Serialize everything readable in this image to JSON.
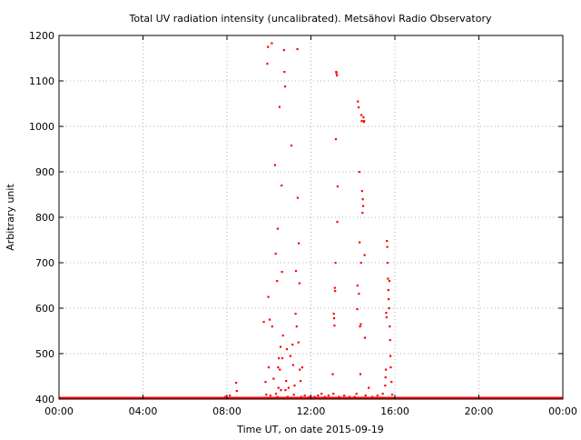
{
  "chart_data": {
    "type": "scatter",
    "title": "Total UV radiation intensity (uncalibrated). Metsähovi Radio Observatory",
    "xlabel": "Time UT, on date 2015-09-19",
    "ylabel": "Arbitrary unit",
    "xlim": [
      "00:00",
      "24:00"
    ],
    "ylim": [
      400,
      1200
    ],
    "x_ticks": [
      "00:00",
      "04:00",
      "08:00",
      "12:00",
      "16:00",
      "20:00",
      "00:00"
    ],
    "y_ticks": [
      "400",
      "500",
      "600",
      "700",
      "800",
      "900",
      "1000",
      "1100",
      "1200"
    ],
    "grid": true,
    "baseline": {
      "value": 400,
      "from": "00:00",
      "to": "24:00"
    },
    "series": [
      {
        "color": "#ff0000",
        "points": [
          {
            "x": "07:55",
            "y": 405
          },
          {
            "x": "08:08",
            "y": 408
          },
          {
            "x": "08:26",
            "y": 436
          },
          {
            "x": "08:28",
            "y": 418
          },
          {
            "x": "09:45",
            "y": 570
          },
          {
            "x": "09:50",
            "y": 438
          },
          {
            "x": "09:52",
            "y": 410
          },
          {
            "x": "09:55",
            "y": 1138
          },
          {
            "x": "09:57",
            "y": 1175
          },
          {
            "x": "09:58",
            "y": 625
          },
          {
            "x": "09:59",
            "y": 470
          },
          {
            "x": "10:02",
            "y": 575
          },
          {
            "x": "10:04",
            "y": 408
          },
          {
            "x": "10:08",
            "y": 1183
          },
          {
            "x": "10:09",
            "y": 560
          },
          {
            "x": "10:13",
            "y": 445
          },
          {
            "x": "10:17",
            "y": 915
          },
          {
            "x": "10:19",
            "y": 720
          },
          {
            "x": "10:20",
            "y": 412
          },
          {
            "x": "10:23",
            "y": 660
          },
          {
            "x": "10:24",
            "y": 405
          },
          {
            "x": "10:25",
            "y": 775
          },
          {
            "x": "10:26",
            "y": 470
          },
          {
            "x": "10:27",
            "y": 425
          },
          {
            "x": "10:28",
            "y": 490
          },
          {
            "x": "10:30",
            "y": 1043
          },
          {
            "x": "10:31",
            "y": 465
          },
          {
            "x": "10:33",
            "y": 515
          },
          {
            "x": "10:34",
            "y": 420
          },
          {
            "x": "10:36",
            "y": 870
          },
          {
            "x": "10:37",
            "y": 680
          },
          {
            "x": "10:38",
            "y": 490
          },
          {
            "x": "10:40",
            "y": 540
          },
          {
            "x": "10:43",
            "y": 1168
          },
          {
            "x": "10:44",
            "y": 1120
          },
          {
            "x": "10:46",
            "y": 1088
          },
          {
            "x": "10:47",
            "y": 420
          },
          {
            "x": "10:49",
            "y": 440
          },
          {
            "x": "10:51",
            "y": 510
          },
          {
            "x": "10:53",
            "y": 405
          },
          {
            "x": "10:56",
            "y": 425
          },
          {
            "x": "11:01",
            "y": 495
          },
          {
            "x": "11:04",
            "y": 958
          },
          {
            "x": "11:07",
            "y": 520
          },
          {
            "x": "11:09",
            "y": 475
          },
          {
            "x": "11:11",
            "y": 410
          },
          {
            "x": "11:13",
            "y": 430
          },
          {
            "x": "11:16",
            "y": 588
          },
          {
            "x": "11:17",
            "y": 682
          },
          {
            "x": "11:19",
            "y": 560
          },
          {
            "x": "11:21",
            "y": 1170
          },
          {
            "x": "11:22",
            "y": 843
          },
          {
            "x": "11:24",
            "y": 525
          },
          {
            "x": "11:25",
            "y": 743
          },
          {
            "x": "11:27",
            "y": 655
          },
          {
            "x": "11:28",
            "y": 465
          },
          {
            "x": "11:30",
            "y": 440
          },
          {
            "x": "11:32",
            "y": 405
          },
          {
            "x": "11:35",
            "y": 470
          },
          {
            "x": "11:42",
            "y": 408
          },
          {
            "x": "11:55",
            "y": 405
          },
          {
            "x": "12:10",
            "y": 405
          },
          {
            "x": "12:20",
            "y": 408
          },
          {
            "x": "12:30",
            "y": 412
          },
          {
            "x": "12:40",
            "y": 405
          },
          {
            "x": "12:50",
            "y": 408
          },
          {
            "x": "13:02",
            "y": 455
          },
          {
            "x": "13:04",
            "y": 412
          },
          {
            "x": "13:05",
            "y": 588
          },
          {
            "x": "13:06",
            "y": 578
          },
          {
            "x": "13:07",
            "y": 562
          },
          {
            "x": "13:08",
            "y": 645
          },
          {
            "x": "13:09",
            "y": 638
          },
          {
            "x": "13:10",
            "y": 700
          },
          {
            "x": "13:11",
            "y": 972
          },
          {
            "x": "13:12",
            "y": 1120
          },
          {
            "x": "13:13",
            "y": 1117
          },
          {
            "x": "13:14",
            "y": 1112
          },
          {
            "x": "13:15",
            "y": 790
          },
          {
            "x": "13:16",
            "y": 868
          },
          {
            "x": "13:20",
            "y": 405
          },
          {
            "x": "13:35",
            "y": 408
          },
          {
            "x": "13:50",
            "y": 405
          },
          {
            "x": "14:05",
            "y": 405
          },
          {
            "x": "14:10",
            "y": 412
          },
          {
            "x": "14:12",
            "y": 598
          },
          {
            "x": "14:13",
            "y": 650
          },
          {
            "x": "14:14",
            "y": 1055
          },
          {
            "x": "14:16",
            "y": 1042
          },
          {
            "x": "14:17",
            "y": 632
          },
          {
            "x": "14:18",
            "y": 900
          },
          {
            "x": "14:19",
            "y": 745
          },
          {
            "x": "14:20",
            "y": 560
          },
          {
            "x": "14:21",
            "y": 455
          },
          {
            "x": "14:22",
            "y": 565
          },
          {
            "x": "14:23",
            "y": 700
          },
          {
            "x": "14:24",
            "y": 1025
          },
          {
            "x": "14:25",
            "y": 1012
          },
          {
            "x": "14:26",
            "y": 858
          },
          {
            "x": "14:27",
            "y": 810
          },
          {
            "x": "14:28",
            "y": 840
          },
          {
            "x": "14:29",
            "y": 825
          },
          {
            "x": "14:30",
            "y": 1020
          },
          {
            "x": "14:31",
            "y": 1010
          },
          {
            "x": "14:32",
            "y": 1012
          },
          {
            "x": "14:33",
            "y": 717
          },
          {
            "x": "14:34",
            "y": 535
          },
          {
            "x": "14:36",
            "y": 408
          },
          {
            "x": "14:45",
            "y": 425
          },
          {
            "x": "14:55",
            "y": 405
          },
          {
            "x": "15:10",
            "y": 408
          },
          {
            "x": "15:25",
            "y": 412
          },
          {
            "x": "15:32",
            "y": 430
          },
          {
            "x": "15:33",
            "y": 448
          },
          {
            "x": "15:34",
            "y": 465
          },
          {
            "x": "15:35",
            "y": 590
          },
          {
            "x": "15:36",
            "y": 580
          },
          {
            "x": "15:37",
            "y": 748
          },
          {
            "x": "15:38",
            "y": 735
          },
          {
            "x": "15:39",
            "y": 700
          },
          {
            "x": "15:40",
            "y": 665
          },
          {
            "x": "15:41",
            "y": 640
          },
          {
            "x": "15:42",
            "y": 620
          },
          {
            "x": "15:43",
            "y": 600
          },
          {
            "x": "15:44",
            "y": 660
          },
          {
            "x": "15:45",
            "y": 560
          },
          {
            "x": "15:46",
            "y": 530
          },
          {
            "x": "15:47",
            "y": 495
          },
          {
            "x": "15:48",
            "y": 470
          },
          {
            "x": "15:50",
            "y": 438
          },
          {
            "x": "15:52",
            "y": 410
          }
        ]
      }
    ]
  }
}
